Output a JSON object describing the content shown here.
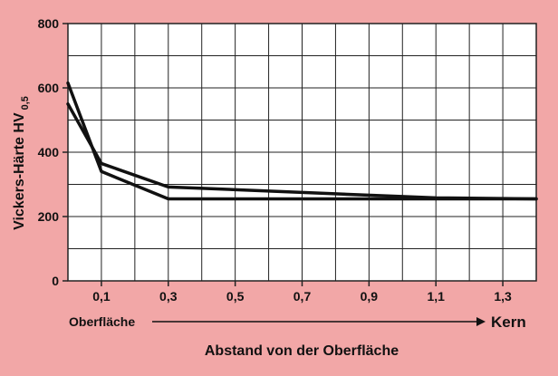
{
  "chart_data": {
    "type": "line",
    "title": "",
    "xlabel": "Abstand von der Oberfläche",
    "ylabel_main": "Vickers-Härte HV",
    "ylabel_sub": "0,5",
    "x_start_label": "Oberfläche",
    "x_end_label": "Kern",
    "xlim": [
      0,
      1.4
    ],
    "ylim": [
      0,
      800
    ],
    "x_ticks": [
      {
        "value": 0.1,
        "label": "0,1"
      },
      {
        "value": 0.3,
        "label": "0,3"
      },
      {
        "value": 0.5,
        "label": "0,5"
      },
      {
        "value": 0.7,
        "label": "0,7"
      },
      {
        "value": 0.9,
        "label": "0,9"
      },
      {
        "value": 1.1,
        "label": "1,1"
      },
      {
        "value": 1.3,
        "label": "1,3"
      }
    ],
    "y_ticks": [
      {
        "value": 0,
        "label": "0"
      },
      {
        "value": 200,
        "label": "200"
      },
      {
        "value": 400,
        "label": "400"
      },
      {
        "value": 600,
        "label": "600"
      },
      {
        "value": 800,
        "label": "800"
      }
    ],
    "grid": true,
    "series": [
      {
        "x": [
          0,
          0.1,
          0.3,
          1.2,
          1.4
        ],
        "y": [
          615,
          340,
          255,
          255,
          255
        ]
      },
      {
        "x": [
          0,
          0.1,
          0.3,
          0.7,
          1.1,
          1.4
        ],
        "y": [
          550,
          365,
          292,
          275,
          258,
          255
        ]
      }
    ]
  },
  "colors": {
    "background": "#f2a7a7",
    "plot_background": "#ffffff",
    "grid": "#222222",
    "series_line": "#111111",
    "text": "#111111"
  }
}
